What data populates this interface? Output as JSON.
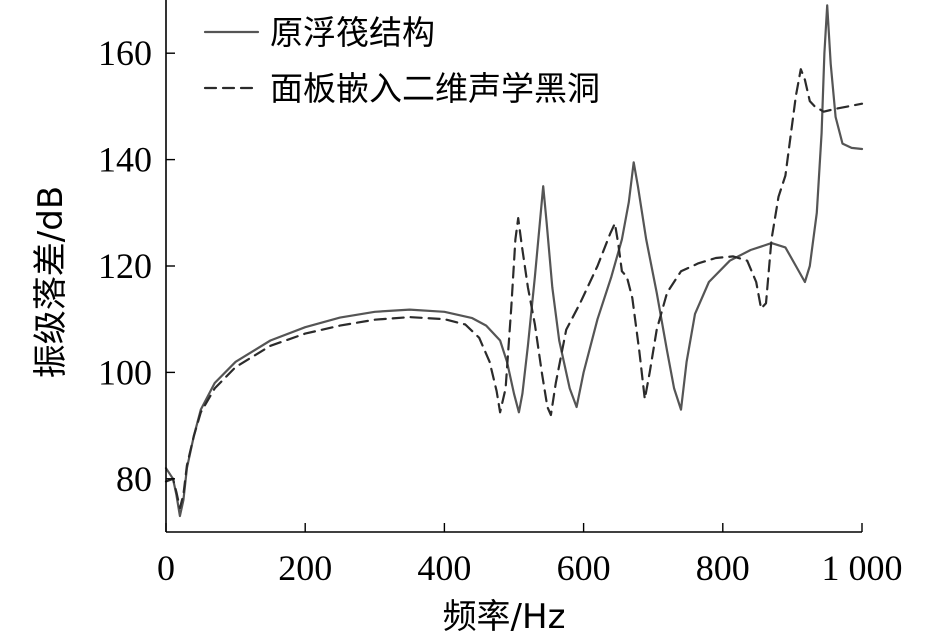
{
  "chart_data": {
    "type": "line",
    "xlabel": "频率/Hz",
    "ylabel": "振级落差/dB",
    "xlim": [
      0,
      1000
    ],
    "ylim": [
      70,
      170
    ],
    "x_ticks": [
      0,
      200,
      400,
      600,
      800,
      1000
    ],
    "x_tick_labels": [
      "0",
      "200",
      "400",
      "600",
      "800",
      "1 000"
    ],
    "y_ticks": [
      80,
      100,
      120,
      140,
      160
    ],
    "y_tick_labels": [
      "80",
      "100",
      "120",
      "140",
      "160"
    ],
    "grid": false,
    "legend_position": "top-left",
    "series": [
      {
        "name": "原浮筏结构",
        "style": "solid",
        "color": "#555555",
        "points": [
          [
            0,
            82
          ],
          [
            10,
            80
          ],
          [
            15,
            77
          ],
          [
            20,
            73
          ],
          [
            25,
            76
          ],
          [
            30,
            82
          ],
          [
            40,
            88
          ],
          [
            50,
            93
          ],
          [
            70,
            98
          ],
          [
            100,
            102
          ],
          [
            150,
            106
          ],
          [
            200,
            108.5
          ],
          [
            250,
            110.3
          ],
          [
            300,
            111.4
          ],
          [
            350,
            111.8
          ],
          [
            400,
            111.4
          ],
          [
            440,
            110.2
          ],
          [
            460,
            108.8
          ],
          [
            480,
            106
          ],
          [
            490,
            102
          ],
          [
            500,
            96
          ],
          [
            507,
            92.5
          ],
          [
            512,
            96
          ],
          [
            520,
            105
          ],
          [
            530,
            118
          ],
          [
            537,
            128
          ],
          [
            542,
            135
          ],
          [
            547,
            128
          ],
          [
            555,
            116
          ],
          [
            565,
            106
          ],
          [
            580,
            97
          ],
          [
            590,
            93.5
          ],
          [
            600,
            100
          ],
          [
            620,
            110
          ],
          [
            640,
            118
          ],
          [
            655,
            125
          ],
          [
            665,
            132
          ],
          [
            672,
            139.5
          ],
          [
            678,
            135
          ],
          [
            690,
            125
          ],
          [
            705,
            115
          ],
          [
            720,
            104
          ],
          [
            730,
            97
          ],
          [
            740,
            93
          ],
          [
            748,
            102
          ],
          [
            760,
            111
          ],
          [
            780,
            117
          ],
          [
            810,
            121
          ],
          [
            840,
            123
          ],
          [
            870,
            124.3
          ],
          [
            890,
            123.5
          ],
          [
            905,
            120
          ],
          [
            918,
            117
          ],
          [
            925,
            120
          ],
          [
            935,
            130
          ],
          [
            942,
            145
          ],
          [
            946,
            160
          ],
          [
            950,
            169
          ],
          [
            955,
            158
          ],
          [
            962,
            148
          ],
          [
            972,
            143
          ],
          [
            985,
            142.2
          ],
          [
            1000,
            142
          ]
        ]
      },
      {
        "name": "面板嵌入二维声学黑洞",
        "style": "dashed",
        "color": "#2b2b2b",
        "points": [
          [
            0,
            79.5
          ],
          [
            10,
            80
          ],
          [
            15,
            77.5
          ],
          [
            20,
            74.5
          ],
          [
            25,
            77
          ],
          [
            30,
            82.5
          ],
          [
            40,
            88
          ],
          [
            50,
            92.5
          ],
          [
            70,
            97
          ],
          [
            100,
            101
          ],
          [
            150,
            105
          ],
          [
            200,
            107.3
          ],
          [
            250,
            108.8
          ],
          [
            300,
            109.9
          ],
          [
            350,
            110.4
          ],
          [
            400,
            110
          ],
          [
            430,
            109
          ],
          [
            450,
            106.5
          ],
          [
            465,
            102
          ],
          [
            475,
            96.5
          ],
          [
            480,
            92.5
          ],
          [
            488,
            97
          ],
          [
            496,
            112
          ],
          [
            502,
            125
          ],
          [
            506,
            129
          ],
          [
            511,
            124
          ],
          [
            520,
            116
          ],
          [
            530,
            109
          ],
          [
            540,
            100
          ],
          [
            548,
            93.5
          ],
          [
            553,
            92
          ],
          [
            560,
            98
          ],
          [
            575,
            108
          ],
          [
            595,
            113
          ],
          [
            620,
            120
          ],
          [
            638,
            126
          ],
          [
            645,
            128
          ],
          [
            650,
            124
          ],
          [
            655,
            119
          ],
          [
            662,
            118
          ],
          [
            670,
            114
          ],
          [
            680,
            104
          ],
          [
            688,
            95
          ],
          [
            695,
            100
          ],
          [
            705,
            108
          ],
          [
            720,
            115
          ],
          [
            740,
            119
          ],
          [
            765,
            120.5
          ],
          [
            790,
            121.5
          ],
          [
            815,
            121.8
          ],
          [
            835,
            121
          ],
          [
            848,
            117
          ],
          [
            855,
            112
          ],
          [
            862,
            113
          ],
          [
            870,
            125
          ],
          [
            880,
            133
          ],
          [
            890,
            137
          ],
          [
            898,
            145
          ],
          [
            905,
            152
          ],
          [
            912,
            157
          ],
          [
            918,
            155
          ],
          [
            925,
            151
          ],
          [
            932,
            150
          ],
          [
            945,
            149
          ],
          [
            960,
            149.5
          ],
          [
            980,
            150
          ],
          [
            1000,
            150.5
          ]
        ]
      }
    ]
  }
}
